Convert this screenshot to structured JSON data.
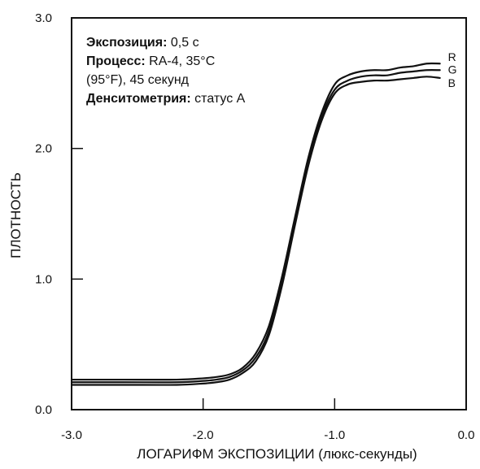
{
  "chart_data": {
    "type": "line",
    "title": "",
    "xlabel": "ЛОГАРИФМ ЭКСПОЗИЦИИ (люкс-секунды)",
    "ylabel": "ПЛОТНОСТЬ",
    "xlim": [
      -3.0,
      0.0
    ],
    "ylim": [
      0.0,
      3.0
    ],
    "x_ticks": [
      -3.0,
      -2.0,
      -1.0,
      0.0
    ],
    "x_tick_labels": [
      "-3.0",
      "-2.0",
      "-1.0",
      "0.0"
    ],
    "y_ticks": [
      0.0,
      1.0,
      2.0,
      3.0
    ],
    "y_tick_labels": [
      "0.0",
      "1.0",
      "2.0",
      "3.0"
    ],
    "grid": false,
    "legend": "curve-end labels",
    "annotation": [
      {
        "bold": "Экспозиция:",
        "text": " 0,5 с"
      },
      {
        "bold": "Процесс:",
        "text": " RA-4, 35°C"
      },
      {
        "bold": "",
        "text": "(95°F), 45 секунд"
      },
      {
        "bold": "Денситометрия:",
        "text": " статус А"
      }
    ],
    "series": [
      {
        "name": "R",
        "x": [
          -3.0,
          -2.6,
          -2.2,
          -2.0,
          -1.9,
          -1.8,
          -1.7,
          -1.6,
          -1.5,
          -1.4,
          -1.3,
          -1.2,
          -1.1,
          -1.0,
          -0.9,
          -0.8,
          -0.7,
          -0.6,
          -0.5,
          -0.4,
          -0.3,
          -0.2
        ],
        "y": [
          0.23,
          0.23,
          0.23,
          0.24,
          0.25,
          0.27,
          0.32,
          0.43,
          0.64,
          1.02,
          1.48,
          1.93,
          2.27,
          2.49,
          2.56,
          2.59,
          2.6,
          2.6,
          2.62,
          2.63,
          2.65,
          2.65
        ]
      },
      {
        "name": "G",
        "x": [
          -3.0,
          -2.6,
          -2.2,
          -2.0,
          -1.9,
          -1.8,
          -1.7,
          -1.6,
          -1.5,
          -1.4,
          -1.3,
          -1.2,
          -1.1,
          -1.0,
          -0.9,
          -0.8,
          -0.7,
          -0.6,
          -0.5,
          -0.4,
          -0.3,
          -0.2
        ],
        "y": [
          0.21,
          0.21,
          0.21,
          0.22,
          0.23,
          0.25,
          0.3,
          0.4,
          0.6,
          0.98,
          1.45,
          1.9,
          2.24,
          2.45,
          2.52,
          2.55,
          2.56,
          2.56,
          2.58,
          2.59,
          2.6,
          2.6
        ]
      },
      {
        "name": "B",
        "x": [
          -3.0,
          -2.6,
          -2.2,
          -2.0,
          -1.9,
          -1.8,
          -1.7,
          -1.6,
          -1.5,
          -1.4,
          -1.3,
          -1.2,
          -1.1,
          -1.0,
          -0.9,
          -0.8,
          -0.7,
          -0.6,
          -0.5,
          -0.4,
          -0.3,
          -0.2
        ],
        "y": [
          0.19,
          0.19,
          0.19,
          0.2,
          0.21,
          0.23,
          0.28,
          0.37,
          0.57,
          0.95,
          1.42,
          1.87,
          2.21,
          2.42,
          2.49,
          2.51,
          2.52,
          2.52,
          2.53,
          2.54,
          2.55,
          2.54
        ]
      }
    ],
    "colors": {
      "axes": "#111111",
      "curves": "#111111",
      "background": "#ffffff"
    }
  }
}
